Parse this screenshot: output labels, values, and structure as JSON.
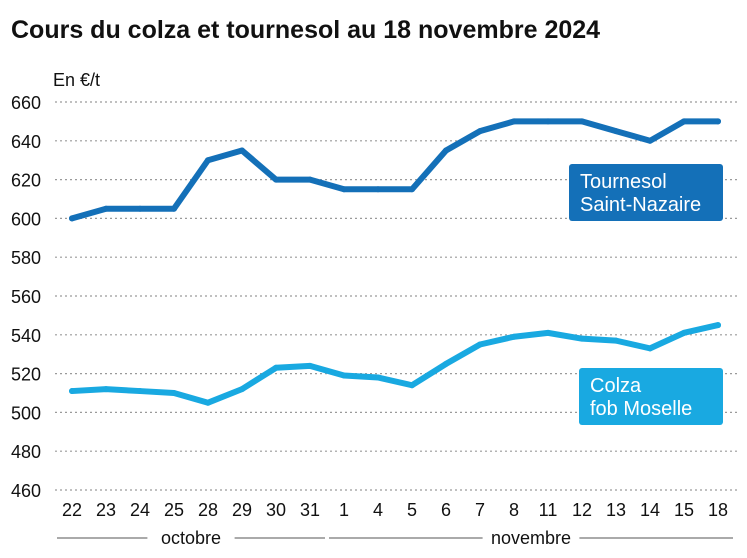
{
  "chart_data": {
    "type": "line",
    "title": "Cours du colza et tournesol au 18 novembre 2024",
    "unit_label": "En €/t",
    "ylim": [
      460,
      660
    ],
    "yticks": [
      460,
      480,
      500,
      520,
      540,
      560,
      580,
      600,
      620,
      640,
      660
    ],
    "grid": "horizontal-dotted",
    "categories": [
      "22",
      "23",
      "24",
      "25",
      "28",
      "29",
      "30",
      "31",
      "1",
      "4",
      "5",
      "6",
      "7",
      "8",
      "11",
      "12",
      "13",
      "14",
      "15",
      "18"
    ],
    "month_groups": [
      {
        "label": "octobre",
        "start": 0,
        "end": 7
      },
      {
        "label": "novembre",
        "start": 8,
        "end": 19
      }
    ],
    "series": [
      {
        "name": "Tournesol Saint-Nazaire",
        "label_lines": [
          "Tournesol",
          "Saint-Nazaire"
        ],
        "color": "#1470b8",
        "label_bg": "#1470b8",
        "values": [
          600,
          605,
          605,
          605,
          630,
          635,
          620,
          620,
          615,
          615,
          615,
          635,
          645,
          650,
          650,
          650,
          645,
          640,
          650,
          650
        ]
      },
      {
        "name": "Colza fob Moselle",
        "label_lines": [
          "Colza",
          "fob Moselle"
        ],
        "color": "#19a9e1",
        "label_bg": "#19a9e1",
        "values": [
          511,
          512,
          511,
          510,
          505,
          512,
          523,
          524,
          519,
          518,
          514,
          525,
          535,
          539,
          541,
          538,
          537,
          533,
          541,
          545
        ]
      }
    ]
  }
}
